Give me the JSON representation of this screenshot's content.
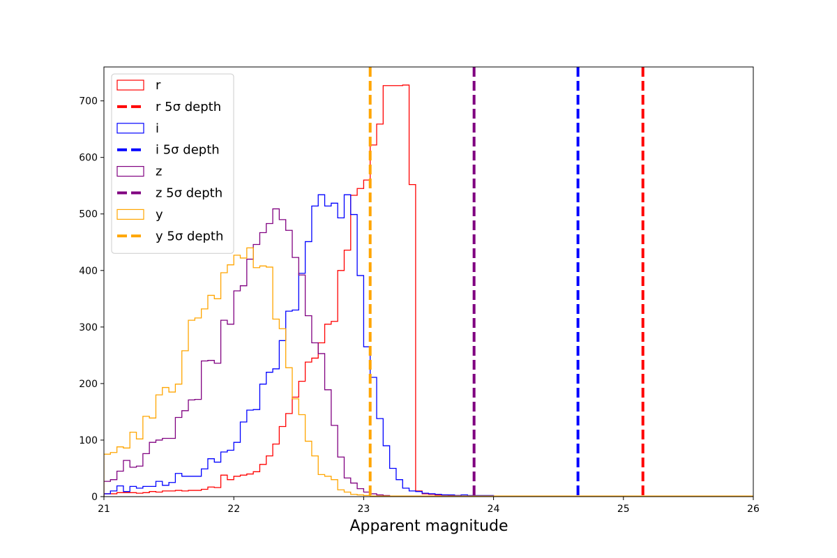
{
  "chart_data": {
    "type": "histogram",
    "title": "",
    "xlabel": "Apparent magnitude",
    "ylabel": "",
    "xlim": [
      21,
      26
    ],
    "ylim": [
      0,
      760
    ],
    "xticks": [
      "21",
      "22",
      "23",
      "24",
      "25",
      "26"
    ],
    "yticks": [
      "0",
      "100",
      "200",
      "300",
      "400",
      "500",
      "600",
      "700"
    ],
    "grid": false,
    "legend_position": "upper-left",
    "bin_start": 21.0,
    "bin_width": 0.05,
    "series": [
      {
        "name": "r",
        "color": "#ff0000",
        "values": [
          5,
          5,
          7,
          7,
          7,
          6,
          7,
          9,
          8,
          10,
          10,
          11,
          10,
          11,
          11,
          13,
          17,
          16,
          38,
          30,
          36,
          38,
          40,
          44,
          57,
          72,
          93,
          124,
          147,
          176,
          204,
          238,
          245,
          272,
          305,
          310,
          400,
          436,
          533,
          545,
          560,
          622,
          659,
          727,
          727,
          727,
          728,
          552,
          10,
          5,
          4,
          3,
          3,
          2,
          2,
          1,
          1,
          1,
          1,
          1,
          1,
          1,
          1,
          1,
          1,
          1,
          1,
          1,
          1,
          1,
          1,
          1,
          1,
          1,
          1,
          1,
          1,
          1,
          1,
          1,
          1,
          1,
          1,
          1,
          1,
          1,
          1,
          1,
          1,
          1,
          1,
          1,
          1,
          1,
          1,
          1,
          1,
          1,
          1,
          1
        ]
      },
      {
        "name": "i",
        "color": "#0000ff",
        "values": [
          5,
          10,
          19,
          9,
          18,
          15,
          18,
          18,
          27,
          20,
          25,
          41,
          36,
          36,
          36,
          49,
          67,
          61,
          79,
          82,
          96,
          132,
          153,
          154,
          199,
          220,
          226,
          276,
          328,
          330,
          395,
          451,
          514,
          534,
          514,
          519,
          493,
          534,
          499,
          391,
          265,
          211,
          138,
          90,
          50,
          30,
          15,
          10,
          9,
          6,
          5,
          4,
          3,
          3,
          2,
          3,
          2,
          2,
          2,
          2,
          1,
          1,
          1,
          1,
          1,
          1,
          1,
          1,
          1,
          1,
          1,
          1,
          1,
          1,
          1,
          1,
          1,
          1,
          1,
          1,
          1,
          1,
          1,
          1,
          1,
          1,
          1,
          1,
          1,
          1,
          1,
          1,
          1,
          1,
          1,
          1,
          1,
          1,
          1,
          1
        ]
      },
      {
        "name": "z",
        "color": "#800080",
        "values": [
          27,
          30,
          45,
          64,
          52,
          54,
          76,
          96,
          100,
          103,
          103,
          140,
          152,
          171,
          172,
          240,
          241,
          236,
          312,
          305,
          364,
          373,
          420,
          446,
          467,
          483,
          509,
          490,
          471,
          423,
          392,
          320,
          272,
          253,
          189,
          126,
          70,
          33,
          24,
          14,
          8,
          5,
          3,
          2,
          1,
          1,
          1,
          1,
          1,
          1,
          1,
          1,
          1,
          1,
          1,
          1,
          1,
          1,
          1,
          1,
          1,
          1,
          1,
          1,
          1,
          1,
          1,
          1,
          1,
          1,
          1,
          1,
          1,
          1,
          1,
          1,
          1,
          1,
          1,
          1,
          1,
          1,
          1,
          1,
          1,
          1,
          1,
          1,
          1,
          1,
          1,
          1,
          1,
          1,
          1,
          1,
          1,
          1,
          1,
          1
        ]
      },
      {
        "name": "y",
        "color": "#ffa500",
        "values": [
          75,
          78,
          88,
          86,
          114,
          102,
          142,
          139,
          180,
          193,
          185,
          199,
          258,
          312,
          316,
          332,
          356,
          350,
          396,
          410,
          427,
          422,
          440,
          405,
          408,
          406,
          314,
          297,
          228,
          173,
          145,
          98,
          72,
          39,
          36,
          30,
          12,
          8,
          4,
          3,
          2,
          1,
          1,
          1,
          1,
          1,
          1,
          1,
          1,
          1,
          1,
          1,
          1,
          1,
          1,
          1,
          1,
          1,
          1,
          1,
          1,
          1,
          1,
          1,
          1,
          1,
          1,
          1,
          1,
          1,
          1,
          1,
          1,
          1,
          1,
          1,
          1,
          1,
          1,
          1,
          1,
          1,
          1,
          1,
          1,
          1,
          1,
          1,
          1,
          1,
          1,
          1,
          1,
          1,
          1,
          1,
          1,
          1,
          1,
          1
        ]
      }
    ],
    "depth_lines": [
      {
        "name": "r 5σ depth",
        "band": "r",
        "x": 25.15,
        "color": "#ff0000"
      },
      {
        "name": "i 5σ depth",
        "band": "i",
        "x": 24.65,
        "color": "#0000ff"
      },
      {
        "name": "z 5σ depth",
        "band": "z",
        "x": 23.85,
        "color": "#800080"
      },
      {
        "name": "y 5σ depth",
        "band": "y",
        "x": 23.05,
        "color": "#ffa500"
      }
    ],
    "legend": [
      {
        "label": "r",
        "kind": "hist",
        "color": "#ff0000"
      },
      {
        "label": "r 5σ depth",
        "kind": "line",
        "color": "#ff0000"
      },
      {
        "label": "i",
        "kind": "hist",
        "color": "#0000ff"
      },
      {
        "label": "i 5σ depth",
        "kind": "line",
        "color": "#0000ff"
      },
      {
        "label": "z",
        "kind": "hist",
        "color": "#800080"
      },
      {
        "label": "z 5σ depth",
        "kind": "line",
        "color": "#800080"
      },
      {
        "label": "y",
        "kind": "hist",
        "color": "#ffa500"
      },
      {
        "label": "y 5σ depth",
        "kind": "line",
        "color": "#ffa500"
      }
    ]
  }
}
